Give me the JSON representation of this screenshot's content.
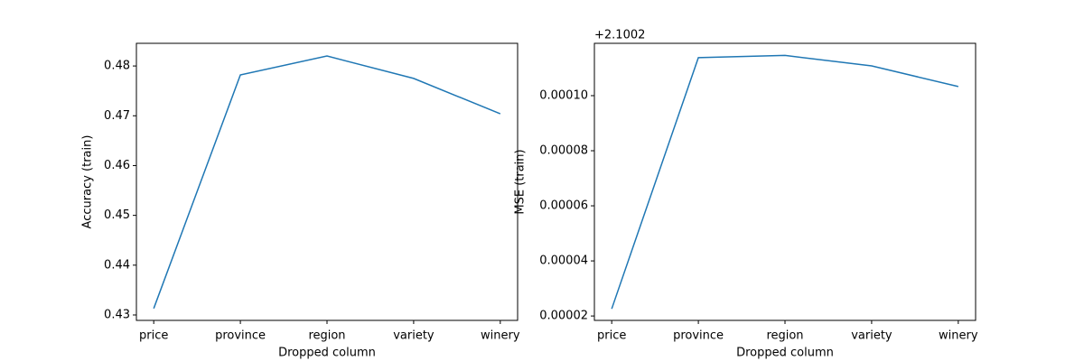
{
  "chart_data": [
    {
      "type": "line",
      "xlabel": "Dropped column",
      "ylabel": "Accuracy (train)",
      "categories": [
        "price",
        "province",
        "region",
        "variety",
        "winery"
      ],
      "values": [
        0.4313,
        0.4782,
        0.482,
        0.4775,
        0.4704
      ],
      "color": "#1f77b4",
      "ylim": [
        0.42891,
        0.48455
      ],
      "yticks": [
        0.43,
        0.44,
        0.45,
        0.46,
        0.47,
        0.48
      ]
    },
    {
      "type": "line",
      "xlabel": "Dropped column",
      "ylabel": "MSE (train)",
      "y_offset_label": "+2.1002",
      "categories": [
        "price",
        "province",
        "region",
        "variety",
        "winery"
      ],
      "values": [
        2.26e-05,
        0.0001138,
        0.0001146,
        0.0001108,
        0.0001033
      ],
      "color": "#1f77b4",
      "ylim": [
        1.84e-05,
        0.000119
      ],
      "yticks": [
        {
          "value": 2e-05,
          "label": "0.00002"
        },
        {
          "value": 4e-05,
          "label": "0.00004"
        },
        {
          "value": 6e-05,
          "label": "0.00006"
        },
        {
          "value": 8e-05,
          "label": "0.00008"
        },
        {
          "value": 0.0001,
          "label": "0.00010"
        }
      ]
    }
  ]
}
